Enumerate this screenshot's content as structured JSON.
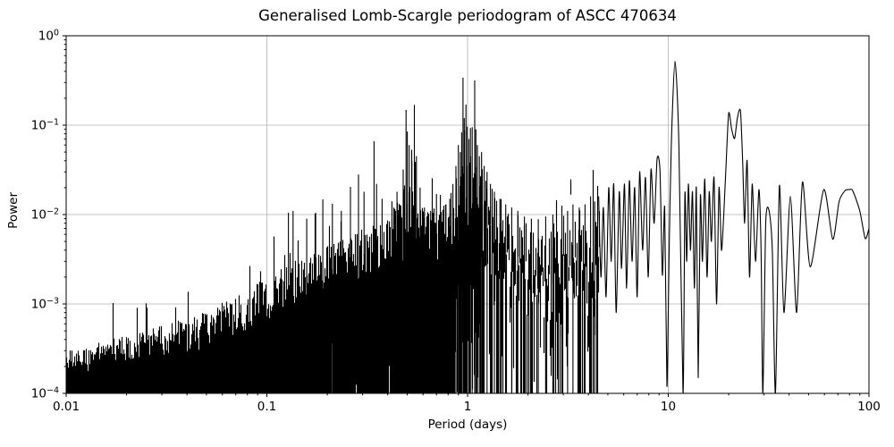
{
  "chart_data": {
    "type": "line",
    "title": "Generalised Lomb-Scargle periodogram of ASCC 470634",
    "xlabel": "Period (days)",
    "ylabel": "Power",
    "x_scale": "log",
    "y_scale": "log",
    "xlim": [
      0.01,
      100
    ],
    "ylim": [
      0.0001,
      1
    ],
    "grid": true,
    "legend": "none",
    "line_color": "#000000",
    "grid_color": "#b0b0b0",
    "background": "#ffffff",
    "x_ticks": [
      {
        "value": 0.01,
        "label": "0.01"
      },
      {
        "value": 0.1,
        "label": "0.1"
      },
      {
        "value": 1,
        "label": "1"
      },
      {
        "value": 10,
        "label": "10"
      },
      {
        "value": 100,
        "label": "100"
      }
    ],
    "y_ticks": [
      {
        "value": 1,
        "label": "10^0"
      },
      {
        "value": 0.1,
        "label": "10^−1"
      },
      {
        "value": 0.01,
        "label": "10^−2"
      },
      {
        "value": 0.001,
        "label": "10^−3"
      },
      {
        "value": 0.0001,
        "label": "10^−4"
      }
    ],
    "dense_region": {
      "x_range": [
        0.01,
        4.5
      ],
      "base_envelope": [
        [
          0.01,
          0.00016
        ],
        [
          0.02,
          0.00021
        ],
        [
          0.04,
          0.00028
        ],
        [
          0.07,
          0.0004
        ],
        [
          0.1,
          0.0006
        ],
        [
          0.15,
          0.001
        ],
        [
          0.22,
          0.0014
        ],
        [
          0.3,
          0.0019
        ],
        [
          0.45,
          0.0026
        ],
        [
          0.6,
          0.003
        ],
        [
          0.75,
          0.003
        ],
        [
          0.87,
          0.004
        ],
        [
          0.95,
          0.007
        ],
        [
          1.05,
          0.007
        ],
        [
          1.15,
          0.0035
        ],
        [
          1.3,
          0.0015
        ],
        [
          1.6,
          0.0008
        ],
        [
          2.2,
          0.0006
        ],
        [
          3.2,
          0.0005
        ],
        [
          4.5,
          0.0005
        ]
      ],
      "spike_envelope": [
        [
          0.01,
          0.0003
        ],
        [
          0.02,
          0.00045
        ],
        [
          0.04,
          0.0007
        ],
        [
          0.07,
          0.0012
        ],
        [
          0.1,
          0.002
        ],
        [
          0.15,
          0.0035
        ],
        [
          0.22,
          0.005
        ],
        [
          0.3,
          0.007
        ],
        [
          0.4,
          0.009
        ],
        [
          0.5,
          0.025
        ],
        [
          0.6,
          0.012
        ],
        [
          0.7,
          0.012
        ],
        [
          0.8,
          0.015
        ],
        [
          0.9,
          0.04
        ],
        [
          1.0,
          0.05
        ],
        [
          1.1,
          0.045
        ],
        [
          1.2,
          0.03
        ],
        [
          1.35,
          0.018
        ],
        [
          1.6,
          0.012
        ],
        [
          2.0,
          0.01
        ],
        [
          2.6,
          0.009
        ],
        [
          3.2,
          0.011
        ],
        [
          4.0,
          0.014
        ],
        [
          4.5,
          0.016
        ]
      ],
      "gap_probability": [
        [
          0.01,
          0
        ],
        [
          0.8,
          0.02
        ],
        [
          0.88,
          0.45
        ],
        [
          1.0,
          0.55
        ],
        [
          1.15,
          0.5
        ],
        [
          1.3,
          0.5
        ],
        [
          1.6,
          0.55
        ],
        [
          2.2,
          0.6
        ],
        [
          3.0,
          0.62
        ],
        [
          4.5,
          0.6
        ]
      ],
      "gap_lift_decades": [
        [
          0.01,
          0.3
        ],
        [
          0.8,
          0.8
        ],
        [
          0.9,
          1.3
        ],
        [
          1.1,
          1.4
        ],
        [
          1.3,
          2.4
        ],
        [
          1.8,
          3.0
        ],
        [
          4.5,
          3.1
        ]
      ]
    },
    "peaks": [
      [
        0.128,
        0.0105
      ],
      [
        0.135,
        0.011
      ],
      [
        0.158,
        0.009
      ],
      [
        0.175,
        0.0105
      ],
      [
        0.19,
        0.0148
      ],
      [
        0.212,
        0.0132
      ],
      [
        0.235,
        0.011
      ],
      [
        0.261,
        0.0204
      ],
      [
        0.286,
        0.028
      ],
      [
        0.305,
        0.018
      ],
      [
        0.342,
        0.066
      ],
      [
        0.352,
        0.022
      ],
      [
        0.375,
        0.015
      ],
      [
        0.42,
        0.0141
      ],
      [
        0.445,
        0.018
      ],
      [
        0.465,
        0.0126
      ],
      [
        0.478,
        0.032
      ],
      [
        0.494,
        0.148
      ],
      [
        0.501,
        0.085
      ],
      [
        0.512,
        0.06
      ],
      [
        0.528,
        0.04
      ],
      [
        0.543,
        0.169
      ],
      [
        0.556,
        0.045
      ],
      [
        0.58,
        0.02
      ],
      [
        0.61,
        0.012
      ],
      [
        0.655,
        0.011
      ],
      [
        0.7,
        0.017
      ],
      [
        0.732,
        0.0166
      ],
      [
        0.78,
        0.013
      ],
      [
        0.815,
        0.015
      ],
      [
        0.845,
        0.022
      ],
      [
        0.875,
        0.035
      ],
      [
        0.9,
        0.06
      ],
      [
        0.92,
        0.05
      ],
      [
        0.935,
        0.083
      ],
      [
        0.949,
        0.34
      ],
      [
        0.963,
        0.12
      ],
      [
        0.982,
        0.17
      ],
      [
        0.997,
        0.096
      ],
      [
        1.015,
        0.07
      ],
      [
        1.033,
        0.093
      ],
      [
        1.055,
        0.095
      ],
      [
        1.086,
        0.316
      ],
      [
        1.1,
        0.09
      ],
      [
        1.12,
        0.06
      ],
      [
        1.145,
        0.045
      ],
      [
        1.175,
        0.05
      ],
      [
        1.21,
        0.035
      ],
      [
        1.25,
        0.03
      ],
      [
        1.3,
        0.022
      ],
      [
        1.36,
        0.018
      ],
      [
        1.45,
        0.015
      ],
      [
        1.55,
        0.013
      ],
      [
        1.66,
        0.012
      ],
      [
        1.78,
        0.011
      ],
      [
        1.92,
        0.0095
      ],
      [
        2.08,
        0.009
      ],
      [
        2.25,
        0.0089
      ],
      [
        2.45,
        0.0095
      ],
      [
        2.66,
        0.01
      ],
      [
        2.95,
        0.0126
      ],
      [
        3.15,
        0.011
      ],
      [
        3.35,
        0.013
      ],
      [
        3.6,
        0.012
      ],
      [
        3.85,
        0.013
      ],
      [
        4.1,
        0.016
      ],
      [
        4.3,
        0.014
      ]
    ],
    "tail": [
      [
        4.5,
        0.016
      ],
      [
        4.62,
        0.002
      ],
      [
        4.75,
        0.012
      ],
      [
        4.9,
        0.0012
      ],
      [
        5.05,
        0.02
      ],
      [
        5.2,
        0.003
      ],
      [
        5.35,
        0.022
      ],
      [
        5.5,
        0.0008
      ],
      [
        5.7,
        0.018
      ],
      [
        5.85,
        0.0025
      ],
      [
        6.05,
        0.022
      ],
      [
        6.2,
        0.0015
      ],
      [
        6.4,
        0.024
      ],
      [
        6.6,
        0.003
      ],
      [
        6.8,
        0.02
      ],
      [
        7.0,
        0.0012
      ],
      [
        7.2,
        0.03
      ],
      [
        7.45,
        0.004
      ],
      [
        7.7,
        0.026
      ],
      [
        7.95,
        0.002
      ],
      [
        8.2,
        0.032
      ],
      [
        8.5,
        0.008
      ],
      [
        8.8,
        0.042
      ],
      [
        9.1,
        0.03
      ],
      [
        9.35,
        0.0021
      ],
      [
        9.6,
        0.012
      ],
      [
        9.85,
        0.00012
      ],
      [
        10.1,
        0.004
      ],
      [
        10.35,
        0.06
      ],
      [
        10.8,
        0.52
      ],
      [
        11.3,
        0.06
      ],
      [
        11.85,
        0.0001
      ],
      [
        12.1,
        0.017
      ],
      [
        12.35,
        0.003
      ],
      [
        12.6,
        0.022
      ],
      [
        12.9,
        0.004
      ],
      [
        13.2,
        0.018
      ],
      [
        13.5,
        0.0015
      ],
      [
        13.8,
        0.02
      ],
      [
        14.1,
        0.00015
      ],
      [
        14.45,
        0.016
      ],
      [
        14.8,
        0.003
      ],
      [
        15.2,
        0.025
      ],
      [
        15.6,
        0.002
      ],
      [
        16.0,
        0.018
      ],
      [
        16.4,
        0.005
      ],
      [
        16.9,
        0.026
      ],
      [
        17.4,
        0.001
      ],
      [
        17.9,
        0.02
      ],
      [
        18.4,
        0.004
      ],
      [
        18.9,
        0.01
      ],
      [
        19.4,
        0.035
      ],
      [
        20.0,
        0.136
      ],
      [
        20.7,
        0.09
      ],
      [
        21.4,
        0.071
      ],
      [
        22.1,
        0.12
      ],
      [
        22.9,
        0.144
      ],
      [
        23.5,
        0.037
      ],
      [
        24.0,
        0.008
      ],
      [
        24.7,
        0.04
      ],
      [
        25.4,
        0.002
      ],
      [
        26.2,
        0.022
      ],
      [
        27.2,
        0.003
      ],
      [
        28.3,
        0.019
      ],
      [
        29.0,
        0.004
      ],
      [
        29.6,
        0.0001
      ],
      [
        30.6,
        0.008
      ],
      [
        31.8,
        0.011
      ],
      [
        33.0,
        0.004
      ],
      [
        34.2,
        0.0001
      ],
      [
        35.8,
        0.021
      ],
      [
        37.7,
        0.0008
      ],
      [
        40.6,
        0.016
      ],
      [
        43.6,
        0.0008
      ],
      [
        46.6,
        0.023
      ],
      [
        51.0,
        0.0026
      ],
      [
        59.5,
        0.019
      ],
      [
        66.0,
        0.0053
      ],
      [
        71.0,
        0.014
      ],
      [
        76.0,
        0.0185
      ],
      [
        80.0,
        0.019
      ],
      [
        83.0,
        0.0185
      ],
      [
        90.0,
        0.011
      ],
      [
        95.8,
        0.0054
      ],
      [
        100.0,
        0.007
      ]
    ]
  }
}
